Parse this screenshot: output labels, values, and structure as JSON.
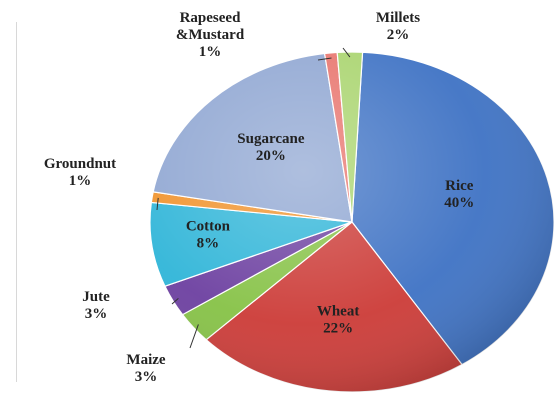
{
  "chart_data": {
    "type": "pie",
    "title": "",
    "slices": [
      {
        "label": "Rice",
        "value": 40,
        "display": "40%",
        "color": "#3e72c4"
      },
      {
        "label": "Wheat",
        "value": 22,
        "display": "22%",
        "color": "#cc3b37"
      },
      {
        "label": "Maize",
        "value": 3,
        "display": "3%",
        "color": "#86c246"
      },
      {
        "label": "Jute",
        "value": 3,
        "display": "3%",
        "color": "#6c3fa0"
      },
      {
        "label": "Cotton",
        "value": 8,
        "display": "8%",
        "color": "#2fb5d8"
      },
      {
        "label": "Groundnut",
        "value": 1,
        "display": "1%",
        "color": "#f0922b"
      },
      {
        "label": "Sugarcane",
        "value": 20,
        "display": "20%",
        "color": "#8fa6d2"
      },
      {
        "label": "Rapeseed\n&Mustard",
        "value": 1,
        "display": "1%",
        "color": "#e8746d"
      },
      {
        "label": "Millets",
        "value": 2,
        "display": "2%",
        "color": "#a9d46e"
      }
    ],
    "legend": "none"
  }
}
